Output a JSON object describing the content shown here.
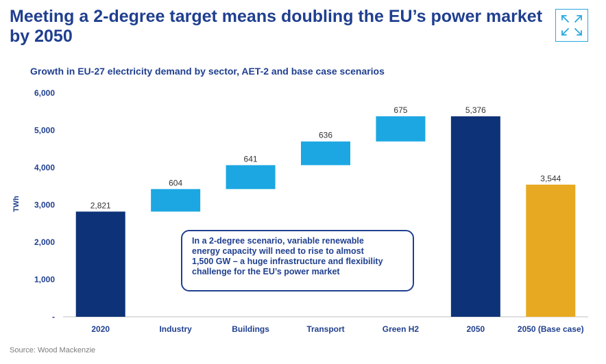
{
  "header": {
    "title_line1": "Meeting a 2-degree target means doubling the EU’s power market",
    "title_line2": "by 2050"
  },
  "icons": {
    "expand": "expand-arrows-icon"
  },
  "callout": {
    "lines": [
      "In a 2-degree scenario, variable renewable",
      "energy capacity will need to rise to almost",
      "1,500 GW – a huge infrastructure and flexibility",
      "challenge for the EU’s power market"
    ]
  },
  "source": "Source: Wood Mackenzie",
  "colors": {
    "total_dark": "#0D3278",
    "increment": "#1CA7E2",
    "base_case": "#E8A922",
    "title": "#1F3F8F"
  },
  "chart_data": {
    "type": "bar",
    "subtype": "waterfall",
    "title": "Growth in EU-27 electricity demand by sector, AET-2 and base case scenarios",
    "ylabel": "TWh",
    "xlabel": "",
    "ylim": [
      0,
      6000
    ],
    "yticks": [
      0,
      1000,
      2000,
      3000,
      4000,
      5000,
      6000
    ],
    "ytick_labels": [
      "-",
      "1,000",
      "2,000",
      "3,000",
      "4,000",
      "5,000",
      "6,000"
    ],
    "grid": false,
    "bars": [
      {
        "category": "2020",
        "kind": "total",
        "value": 2821,
        "label": "2,821",
        "color": "#0D3278"
      },
      {
        "category": "Industry",
        "kind": "increment",
        "value": 604,
        "label": "604",
        "color": "#1CA7E2"
      },
      {
        "category": "Buildings",
        "kind": "increment",
        "value": 641,
        "label": "641",
        "color": "#1CA7E2"
      },
      {
        "category": "Transport",
        "kind": "increment",
        "value": 636,
        "label": "636",
        "color": "#1CA7E2"
      },
      {
        "category": "Green H2",
        "kind": "increment",
        "value": 675,
        "label": "675",
        "color": "#1CA7E2"
      },
      {
        "category": "2050",
        "kind": "total",
        "value": 5376,
        "label": "5,376",
        "color": "#0D3278"
      },
      {
        "category": "2050 (Base case)",
        "kind": "total",
        "value": 3544,
        "label": "3,544",
        "color": "#E8A922"
      }
    ]
  }
}
